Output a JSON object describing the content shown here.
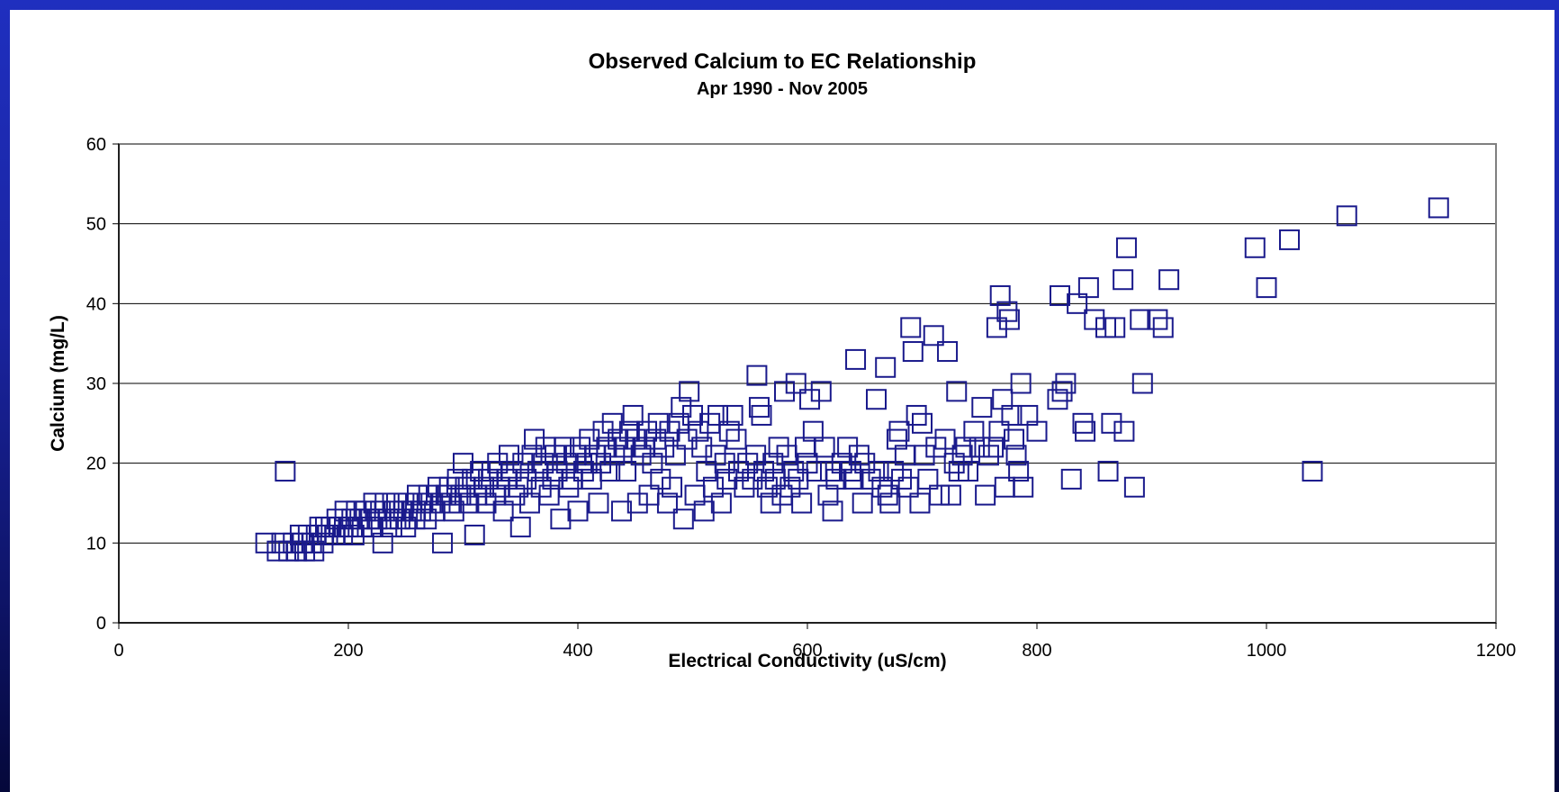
{
  "chart_data": {
    "type": "scatter",
    "title": "Observed Calcium to EC Relationship",
    "subtitle": "Apr 1990 - Nov 2005",
    "xlabel": "Electrical Conductivity (uS/cm)",
    "ylabel": "Calcium (mg/L)",
    "xlim": [
      0,
      1200
    ],
    "ylim": [
      0,
      60
    ],
    "xticks": [
      "0",
      "200",
      "400",
      "600",
      "800",
      "1000",
      "1200"
    ],
    "yticks": [
      "0",
      "10",
      "20",
      "30",
      "40",
      "50",
      "60"
    ],
    "grid": "horizontal major gridlines",
    "legend": "none",
    "marker": "hollow square",
    "colors": {
      "marker": "#1a1a8c",
      "plot_border": "#808080",
      "gridline": "#000000",
      "background": "#1f2fbf"
    },
    "points": [
      [
        128,
        10
      ],
      [
        138,
        9
      ],
      [
        142,
        10
      ],
      [
        145,
        19
      ],
      [
        148,
        9
      ],
      [
        152,
        10
      ],
      [
        155,
        9
      ],
      [
        158,
        11
      ],
      [
        160,
        10
      ],
      [
        162,
        9
      ],
      [
        165,
        11
      ],
      [
        168,
        10
      ],
      [
        170,
        9
      ],
      [
        172,
        11
      ],
      [
        175,
        12
      ],
      [
        178,
        10
      ],
      [
        180,
        12
      ],
      [
        182,
        11
      ],
      [
        185,
        12
      ],
      [
        188,
        11
      ],
      [
        190,
        13
      ],
      [
        192,
        12
      ],
      [
        195,
        11
      ],
      [
        197,
        14
      ],
      [
        200,
        12
      ],
      [
        203,
        13
      ],
      [
        205,
        11
      ],
      [
        207,
        14
      ],
      [
        210,
        13
      ],
      [
        212,
        12
      ],
      [
        215,
        14
      ],
      [
        218,
        13
      ],
      [
        220,
        12
      ],
      [
        222,
        15
      ],
      [
        225,
        13
      ],
      [
        228,
        14
      ],
      [
        230,
        10
      ],
      [
        232,
        15
      ],
      [
        235,
        13
      ],
      [
        238,
        12
      ],
      [
        240,
        14
      ],
      [
        242,
        15
      ],
      [
        245,
        13
      ],
      [
        248,
        14
      ],
      [
        250,
        12
      ],
      [
        252,
        15
      ],
      [
        255,
        14
      ],
      [
        258,
        13
      ],
      [
        260,
        16
      ],
      [
        263,
        14
      ],
      [
        265,
        15
      ],
      [
        268,
        13
      ],
      [
        270,
        16
      ],
      [
        272,
        15
      ],
      [
        275,
        14
      ],
      [
        278,
        17
      ],
      [
        280,
        15
      ],
      [
        282,
        10
      ],
      [
        285,
        16
      ],
      [
        288,
        17
      ],
      [
        290,
        15
      ],
      [
        292,
        14
      ],
      [
        295,
        18
      ],
      [
        298,
        16
      ],
      [
        300,
        20
      ],
      [
        302,
        17
      ],
      [
        305,
        15
      ],
      [
        308,
        18
      ],
      [
        310,
        11
      ],
      [
        312,
        16
      ],
      [
        315,
        19
      ],
      [
        318,
        17
      ],
      [
        320,
        15
      ],
      [
        322,
        18
      ],
      [
        325,
        19
      ],
      [
        328,
        16
      ],
      [
        330,
        20
      ],
      [
        332,
        17
      ],
      [
        335,
        14
      ],
      [
        338,
        18
      ],
      [
        340,
        21
      ],
      [
        342,
        19
      ],
      [
        345,
        16
      ],
      [
        348,
        17
      ],
      [
        350,
        12
      ],
      [
        352,
        20
      ],
      [
        355,
        18
      ],
      [
        358,
        15
      ],
      [
        360,
        21
      ],
      [
        362,
        23
      ],
      [
        365,
        19
      ],
      [
        368,
        17
      ],
      [
        370,
        20
      ],
      [
        372,
        22
      ],
      [
        375,
        16
      ],
      [
        378,
        18
      ],
      [
        380,
        21
      ],
      [
        382,
        19
      ],
      [
        385,
        13
      ],
      [
        388,
        22
      ],
      [
        390,
        20
      ],
      [
        392,
        17
      ],
      [
        395,
        18
      ],
      [
        398,
        21
      ],
      [
        400,
        14
      ],
      [
        402,
        22
      ],
      [
        405,
        19
      ],
      [
        408,
        20
      ],
      [
        410,
        23
      ],
      [
        412,
        18
      ],
      [
        415,
        21
      ],
      [
        418,
        15
      ],
      [
        420,
        20
      ],
      [
        422,
        24
      ],
      [
        425,
        22
      ],
      [
        428,
        19
      ],
      [
        430,
        25
      ],
      [
        432,
        21
      ],
      [
        435,
        23
      ],
      [
        438,
        14
      ],
      [
        440,
        22
      ],
      [
        442,
        19
      ],
      [
        445,
        24
      ],
      [
        448,
        26
      ],
      [
        450,
        23
      ],
      [
        452,
        15
      ],
      [
        455,
        21
      ],
      [
        458,
        22
      ],
      [
        460,
        24
      ],
      [
        462,
        16
      ],
      [
        465,
        20
      ],
      [
        468,
        23
      ],
      [
        470,
        25
      ],
      [
        472,
        18
      ],
      [
        475,
        22
      ],
      [
        478,
        15
      ],
      [
        480,
        24
      ],
      [
        482,
        17
      ],
      [
        485,
        21
      ],
      [
        488,
        25
      ],
      [
        490,
        27
      ],
      [
        492,
        13
      ],
      [
        495,
        23
      ],
      [
        497,
        29
      ],
      [
        500,
        26
      ],
      [
        502,
        16
      ],
      [
        505,
        24
      ],
      [
        508,
        22
      ],
      [
        510,
        14
      ],
      [
        512,
        19
      ],
      [
        515,
        25
      ],
      [
        518,
        17
      ],
      [
        520,
        21
      ],
      [
        522,
        26
      ],
      [
        525,
        15
      ],
      [
        528,
        20
      ],
      [
        530,
        18
      ],
      [
        532,
        24
      ],
      [
        535,
        26
      ],
      [
        538,
        23
      ],
      [
        540,
        19
      ],
      [
        545,
        17
      ],
      [
        548,
        20
      ],
      [
        552,
        18
      ],
      [
        555,
        21
      ],
      [
        556,
        31
      ],
      [
        558,
        27
      ],
      [
        560,
        26
      ],
      [
        562,
        19
      ],
      [
        565,
        17
      ],
      [
        568,
        15
      ],
      [
        570,
        20
      ],
      [
        572,
        18
      ],
      [
        575,
        22
      ],
      [
        578,
        16
      ],
      [
        580,
        29
      ],
      [
        582,
        21
      ],
      [
        585,
        17
      ],
      [
        588,
        19
      ],
      [
        590,
        30
      ],
      [
        592,
        18
      ],
      [
        595,
        15
      ],
      [
        598,
        22
      ],
      [
        600,
        20
      ],
      [
        602,
        28
      ],
      [
        605,
        24
      ],
      [
        608,
        19
      ],
      [
        612,
        29
      ],
      [
        615,
        22
      ],
      [
        618,
        16
      ],
      [
        620,
        19
      ],
      [
        622,
        14
      ],
      [
        625,
        18
      ],
      [
        630,
        20
      ],
      [
        635,
        22
      ],
      [
        638,
        19
      ],
      [
        640,
        18
      ],
      [
        642,
        33
      ],
      [
        645,
        21
      ],
      [
        648,
        15
      ],
      [
        650,
        20
      ],
      [
        655,
        18
      ],
      [
        660,
        28
      ],
      [
        662,
        19
      ],
      [
        665,
        17
      ],
      [
        668,
        32
      ],
      [
        670,
        16
      ],
      [
        672,
        15
      ],
      [
        675,
        19
      ],
      [
        678,
        23
      ],
      [
        680,
        24
      ],
      [
        682,
        18
      ],
      [
        685,
        21
      ],
      [
        688,
        17
      ],
      [
        690,
        37
      ],
      [
        692,
        34
      ],
      [
        695,
        26
      ],
      [
        698,
        15
      ],
      [
        700,
        25
      ],
      [
        702,
        21
      ],
      [
        705,
        18
      ],
      [
        710,
        36
      ],
      [
        712,
        22
      ],
      [
        715,
        16
      ],
      [
        720,
        23
      ],
      [
        722,
        34
      ],
      [
        725,
        16
      ],
      [
        728,
        20
      ],
      [
        730,
        29
      ],
      [
        732,
        19
      ],
      [
        735,
        21
      ],
      [
        738,
        22
      ],
      [
        740,
        19
      ],
      [
        745,
        24
      ],
      [
        750,
        22
      ],
      [
        752,
        27
      ],
      [
        755,
        16
      ],
      [
        758,
        21
      ],
      [
        762,
        22
      ],
      [
        765,
        37
      ],
      [
        767,
        24
      ],
      [
        768,
        41
      ],
      [
        770,
        28
      ],
      [
        772,
        17
      ],
      [
        774,
        39
      ],
      [
        776,
        38
      ],
      [
        778,
        26
      ],
      [
        780,
        23
      ],
      [
        782,
        21
      ],
      [
        784,
        19
      ],
      [
        786,
        30
      ],
      [
        788,
        17
      ],
      [
        792,
        26
      ],
      [
        800,
        24
      ],
      [
        818,
        28
      ],
      [
        820,
        41
      ],
      [
        822,
        29
      ],
      [
        825,
        30
      ],
      [
        830,
        18
      ],
      [
        835,
        40
      ],
      [
        840,
        25
      ],
      [
        842,
        24
      ],
      [
        845,
        42
      ],
      [
        850,
        38
      ],
      [
        860,
        37
      ],
      [
        862,
        19
      ],
      [
        865,
        25
      ],
      [
        868,
        37
      ],
      [
        875,
        43
      ],
      [
        876,
        24
      ],
      [
        878,
        47
      ],
      [
        885,
        17
      ],
      [
        890,
        38
      ],
      [
        892,
        30
      ],
      [
        905,
        38
      ],
      [
        910,
        37
      ],
      [
        915,
        43
      ],
      [
        990,
        47
      ],
      [
        1000,
        42
      ],
      [
        1020,
        48
      ],
      [
        1040,
        19
      ],
      [
        1070,
        51
      ],
      [
        1150,
        52
      ]
    ]
  }
}
